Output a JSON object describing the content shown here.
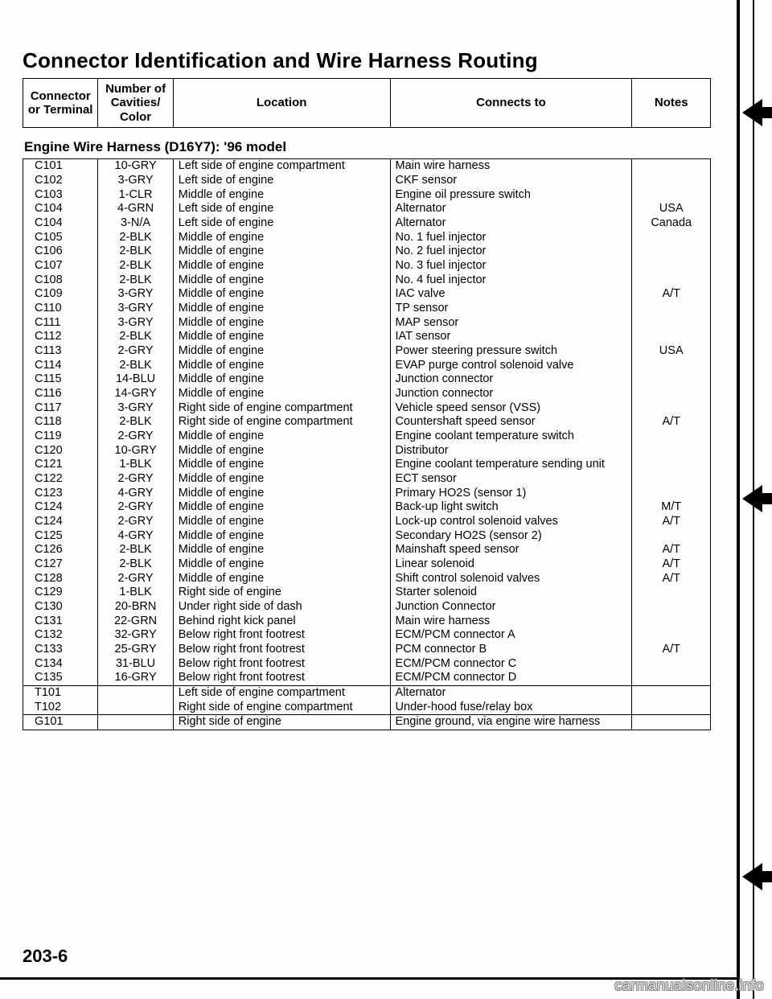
{
  "title": "Connector Identification and Wire Harness Routing",
  "header": {
    "c1": "Connector or Terminal",
    "c2": "Number of Cavities/ Color",
    "c3": "Location",
    "c4": "Connects to",
    "c5": "Notes"
  },
  "subtitle": "Engine Wire Harness (D16Y7): '96 model",
  "colwidths": [
    "90px",
    "90px",
    "260px",
    "290px",
    "94px"
  ],
  "sections": [
    {
      "rows": [
        {
          "c": "C101",
          "n": "10-GRY",
          "loc": "Left side of engine compartment",
          "to": "Main wire harness",
          "note": ""
        },
        {
          "c": "C102",
          "n": "3-GRY",
          "loc": "Left side of engine",
          "to": "CKF sensor",
          "note": ""
        },
        {
          "c": "C103",
          "n": "1-CLR",
          "loc": "Middle of engine",
          "to": "Engine oil pressure switch",
          "note": ""
        },
        {
          "c": "C104",
          "n": "4-GRN",
          "loc": "Left side of engine",
          "to": "Alternator",
          "note": "USA"
        },
        {
          "c": "C104",
          "n": "3-N/A",
          "loc": "Left side of engine",
          "to": "Alternator",
          "note": "Canada"
        },
        {
          "c": "C105",
          "n": "2-BLK",
          "loc": "Middle of engine",
          "to": "No. 1 fuel injector",
          "note": ""
        },
        {
          "c": "C106",
          "n": "2-BLK",
          "loc": "Middle of engine",
          "to": "No. 2 fuel injector",
          "note": ""
        },
        {
          "c": "C107",
          "n": "2-BLK",
          "loc": "Middle of engine",
          "to": "No. 3 fuel injector",
          "note": ""
        },
        {
          "c": "C108",
          "n": "2-BLK",
          "loc": "Middle of engine",
          "to": "No. 4 fuel injector",
          "note": ""
        },
        {
          "c": "C109",
          "n": "3-GRY",
          "loc": "Middle of engine",
          "to": "IAC valve",
          "note": "A/T"
        },
        {
          "c": "C110",
          "n": "3-GRY",
          "loc": "Middle of engine",
          "to": "TP sensor",
          "note": ""
        },
        {
          "c": "C111",
          "n": "3-GRY",
          "loc": "Middle of engine",
          "to": "MAP sensor",
          "note": ""
        },
        {
          "c": "C112",
          "n": "2-BLK",
          "loc": "Middle of engine",
          "to": "IAT sensor",
          "note": ""
        },
        {
          "c": "C113",
          "n": "2-GRY",
          "loc": "Middle of engine",
          "to": "Power steering pressure switch",
          "note": "USA"
        },
        {
          "c": "C114",
          "n": "2-BLK",
          "loc": "Middle of engine",
          "to": "EVAP purge control solenoid valve",
          "note": ""
        },
        {
          "c": "C115",
          "n": "14-BLU",
          "loc": "Middle of engine",
          "to": "Junction connector",
          "note": ""
        },
        {
          "c": "C116",
          "n": "14-GRY",
          "loc": "Middle of engine",
          "to": "Junction connector",
          "note": ""
        },
        {
          "c": "C117",
          "n": "3-GRY",
          "loc": "Right side of engine compartment",
          "to": "Vehicle speed sensor (VSS)",
          "note": ""
        },
        {
          "c": "C118",
          "n": "2-BLK",
          "loc": "Right side of engine compartment",
          "to": "Countershaft speed sensor",
          "note": "A/T"
        },
        {
          "c": "C119",
          "n": "2-GRY",
          "loc": "Middle of engine",
          "to": "Engine coolant temperature switch",
          "note": ""
        },
        {
          "c": "C120",
          "n": "10-GRY",
          "loc": "Middle of engine",
          "to": "Distributor",
          "note": ""
        },
        {
          "c": "C121",
          "n": "1-BLK",
          "loc": "Middle of engine",
          "to": "Engine coolant temperature sending unit",
          "note": ""
        },
        {
          "c": "C122",
          "n": "2-GRY",
          "loc": "Middle of engine",
          "to": "ECT sensor",
          "note": ""
        },
        {
          "c": "C123",
          "n": "4-GRY",
          "loc": "Middle of engine",
          "to": "Primary HO2S (sensor 1)",
          "note": ""
        },
        {
          "c": "C124",
          "n": "2-GRY",
          "loc": "Middle of engine",
          "to": "Back-up light switch",
          "note": "M/T"
        },
        {
          "c": "C124",
          "n": "2-GRY",
          "loc": "Middle of engine",
          "to": "Lock-up control solenoid valves",
          "note": "A/T"
        },
        {
          "c": "C125",
          "n": "4-GRY",
          "loc": "Middle of engine",
          "to": "Secondary HO2S (sensor 2)",
          "note": ""
        },
        {
          "c": "C126",
          "n": "2-BLK",
          "loc": "Middle of engine",
          "to": "Mainshaft speed sensor",
          "note": "A/T"
        },
        {
          "c": "C127",
          "n": "2-BLK",
          "loc": "Middle of engine",
          "to": "Linear solenoid",
          "note": "A/T"
        },
        {
          "c": "C128",
          "n": "2-GRY",
          "loc": "Middle of engine",
          "to": "Shift control solenoid valves",
          "note": "A/T"
        },
        {
          "c": "C129",
          "n": "1-BLK",
          "loc": "Right side of engine",
          "to": "Starter solenoid",
          "note": ""
        },
        {
          "c": "C130",
          "n": "20-BRN",
          "loc": "Under right side of dash",
          "to": "Junction Connector",
          "note": ""
        },
        {
          "c": "C131",
          "n": "22-GRN",
          "loc": "Behind right kick panel",
          "to": "Main wire harness",
          "note": ""
        },
        {
          "c": "C132",
          "n": "32-GRY",
          "loc": "Below right front footrest",
          "to": "ECM/PCM connector A",
          "note": ""
        },
        {
          "c": "C133",
          "n": "25-GRY",
          "loc": "Below right front footrest",
          "to": "PCM connector B",
          "note": "A/T"
        },
        {
          "c": "C134",
          "n": "31-BLU",
          "loc": "Below right front footrest",
          "to": "ECM/PCM connector C",
          "note": ""
        },
        {
          "c": "C135",
          "n": "16-GRY",
          "loc": "Below right front footrest",
          "to": "ECM/PCM connector D",
          "note": ""
        }
      ]
    },
    {
      "rows": [
        {
          "c": "T101",
          "n": "",
          "loc": "Left side of engine compartment",
          "to": "Alternator",
          "note": ""
        },
        {
          "c": "T102",
          "n": "",
          "loc": "Right side of engine compartment",
          "to": "Under-hood fuse/relay box",
          "note": ""
        }
      ]
    },
    {
      "rows": [
        {
          "c": "G101",
          "n": "",
          "loc": "Right side of engine",
          "to": "Engine ground, via engine wire harness",
          "note": ""
        }
      ]
    }
  ],
  "pageNumber": "203-6",
  "watermark": "carmanualsonline.info"
}
